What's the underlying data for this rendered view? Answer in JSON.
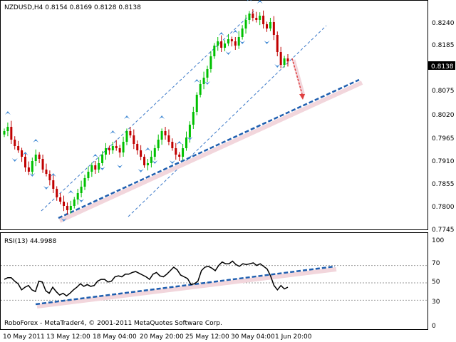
{
  "main_chart": {
    "header": "NZDUSD,H4  0.8154 0.8169 0.8128 0.8138",
    "price_levels": [
      "0.8240",
      "0.8185",
      "0.8130",
      "0.8075",
      "0.8020",
      "0.7965",
      "0.7910",
      "0.7855",
      "0.7800",
      "0.7745"
    ],
    "current_price": "0.8138"
  },
  "rsi_panel": {
    "header": "RSI(13) 44.9988",
    "levels": [
      "100",
      "70",
      "50",
      "30",
      "0"
    ],
    "footer": "RoboForex - MetaTrader4, © 2001-2011 MetaQuotes Software Corp."
  },
  "time_labels": [
    "10 May 2011",
    "13 May 12:00",
    "18 May 04:00",
    "20 May 20:00",
    "25 May 12:00",
    "30 May 04:00",
    "1 Jun 20:00"
  ],
  "colors": {
    "bull_candle": "#00c000",
    "bear_candle": "#c00000",
    "fractal": "#4a8fd6",
    "trendline": "#1f5fb0",
    "channel": "#3a78c8",
    "forecast_arrow": "#e04040",
    "rsi_line": "#000000",
    "price_tag": "#000000"
  },
  "chart_data": [
    {
      "type": "candlestick",
      "symbol": "NZDUSD",
      "timeframe": "H4",
      "ohlc_last": {
        "open": 0.8154,
        "high": 0.8169,
        "low": 0.8128,
        "close": 0.8138
      },
      "ylim": [
        0.7745,
        0.8275
      ],
      "closes": [
        0.7975,
        0.7985,
        0.7955,
        0.794,
        0.793,
        0.7915,
        0.789,
        0.788,
        0.7905,
        0.792,
        0.791,
        0.7885,
        0.7875,
        0.786,
        0.784,
        0.782,
        0.781,
        0.78,
        0.779,
        0.78,
        0.7815,
        0.783,
        0.7845,
        0.7865,
        0.788,
        0.7895,
        0.7885,
        0.79,
        0.792,
        0.7935,
        0.793,
        0.794,
        0.7935,
        0.7925,
        0.795,
        0.7975,
        0.7965,
        0.7945,
        0.793,
        0.7915,
        0.7895,
        0.79,
        0.7915,
        0.7935,
        0.7955,
        0.7975,
        0.7965,
        0.795,
        0.7935,
        0.792,
        0.7915,
        0.7935,
        0.796,
        0.799,
        0.802,
        0.806,
        0.8085,
        0.81,
        0.812,
        0.815,
        0.8175,
        0.8185,
        0.817,
        0.818,
        0.819,
        0.8185,
        0.8175,
        0.8195,
        0.8215,
        0.8235,
        0.825,
        0.824,
        0.8235,
        0.8245,
        0.8225,
        0.8215,
        0.823,
        0.82,
        0.816,
        0.813,
        0.8145,
        0.8138
      ]
    },
    {
      "type": "line",
      "name": "RSI(13)",
      "ylim": [
        0,
        100
      ],
      "levels": [
        30,
        50,
        70
      ],
      "values": [
        54,
        56,
        56,
        52,
        49,
        42,
        45,
        47,
        42,
        40,
        52,
        51,
        41,
        38,
        45,
        40,
        36,
        38,
        35,
        38,
        42,
        45,
        49,
        46,
        48,
        46,
        47,
        52,
        54,
        54,
        51,
        52,
        57,
        58,
        57,
        60,
        60,
        62,
        63,
        61,
        59,
        57,
        54,
        60,
        62,
        58,
        57,
        60,
        64,
        68,
        65,
        59,
        57,
        55,
        48,
        49,
        52,
        64,
        68,
        69,
        67,
        64,
        70,
        74,
        72,
        72,
        75,
        71,
        69,
        72,
        71,
        72,
        73,
        70,
        72,
        69,
        66,
        58,
        47,
        42,
        47,
        43,
        44.9988
      ]
    }
  ]
}
